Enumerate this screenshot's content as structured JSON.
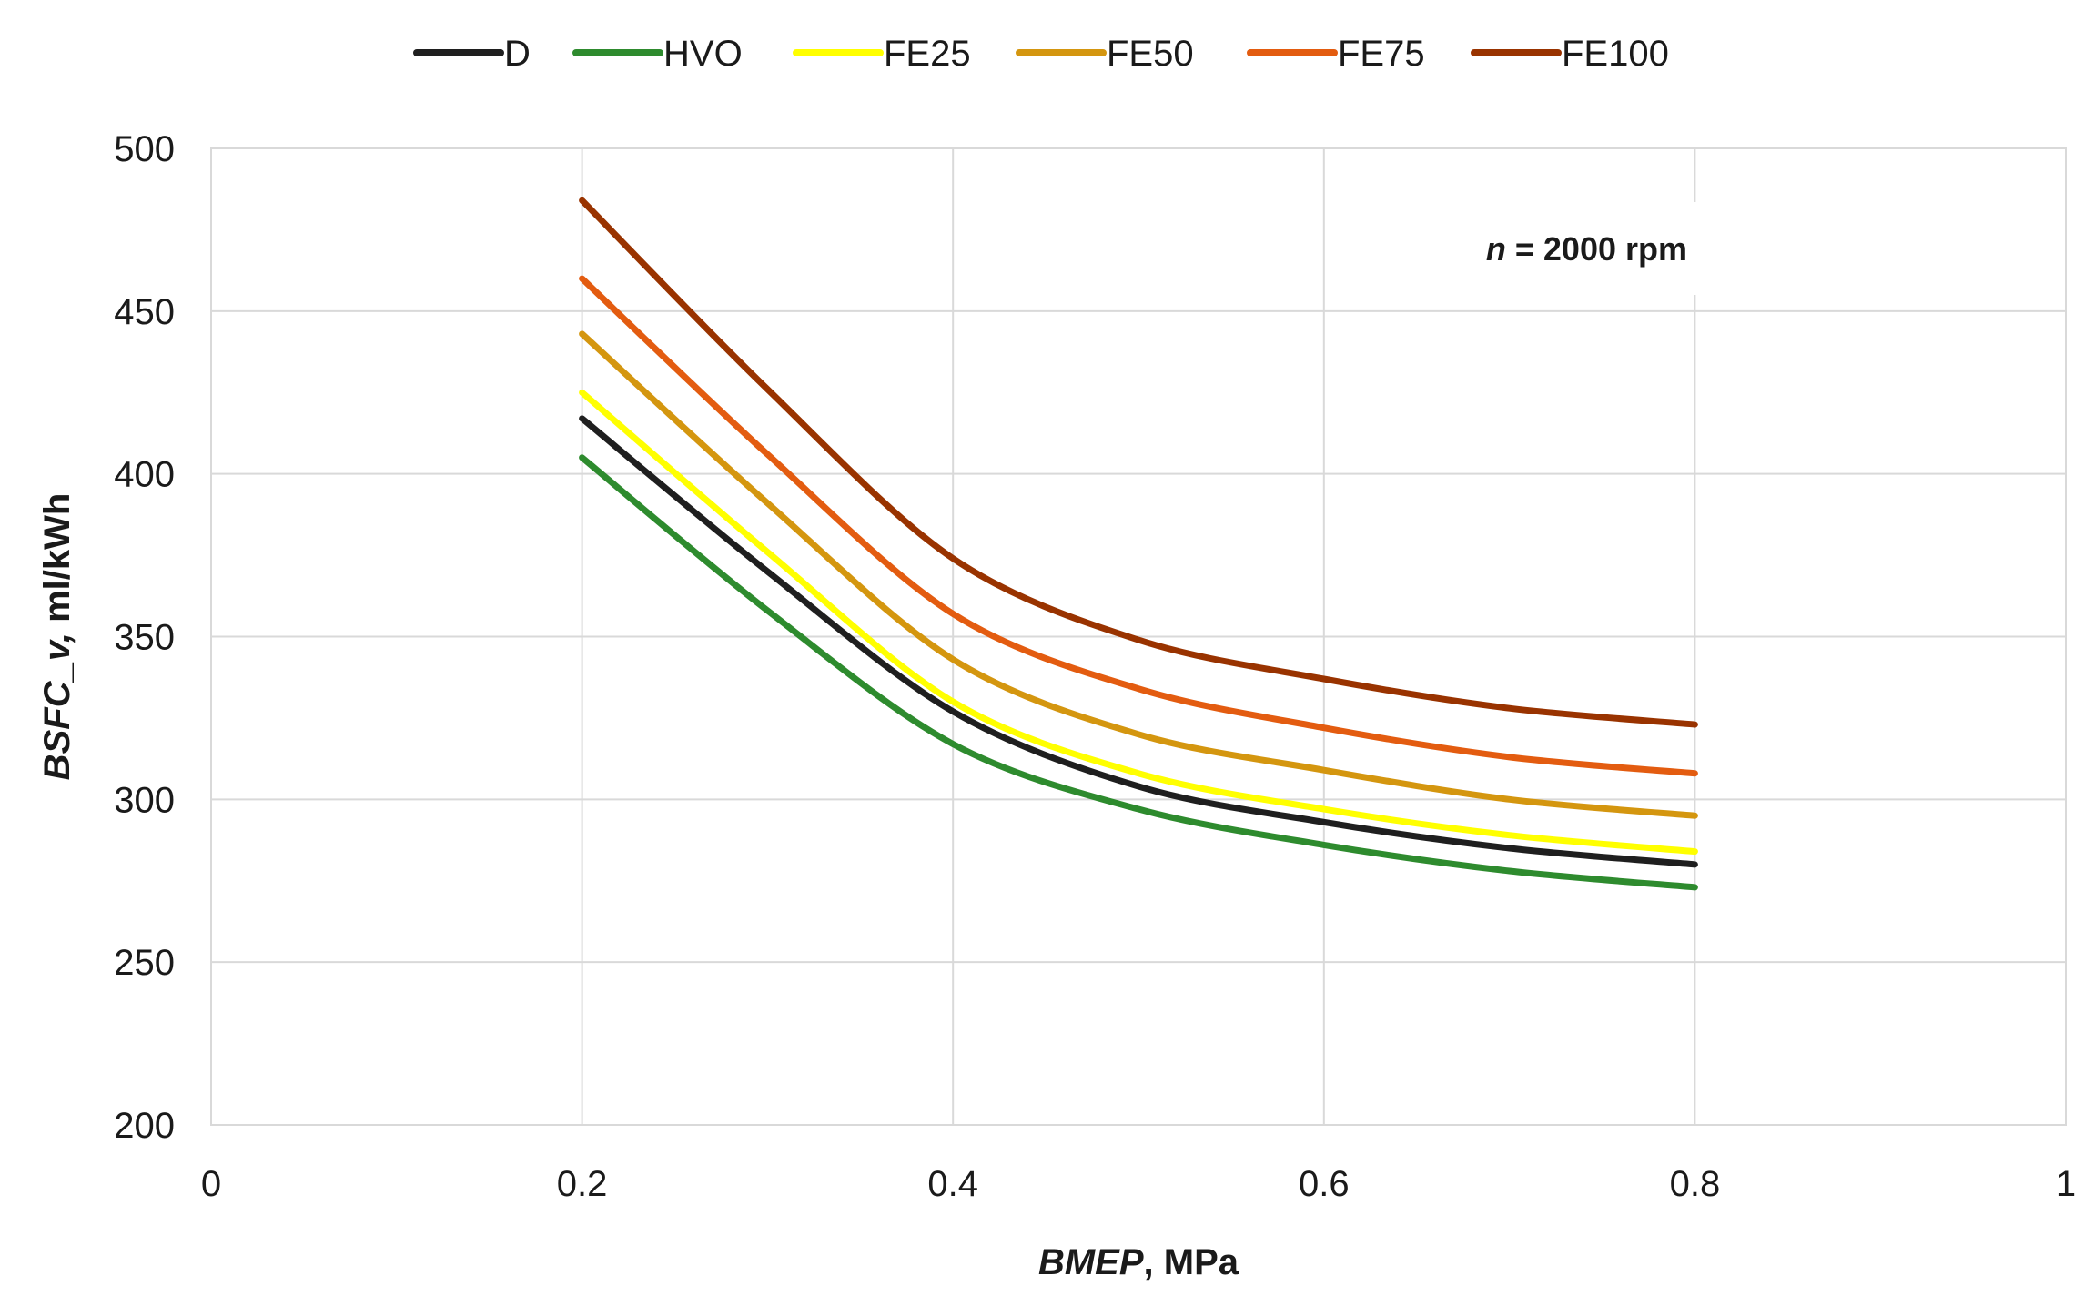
{
  "chart_data": {
    "type": "line",
    "title": "",
    "xlabel": {
      "italic": "BMEP",
      "rest": ", MPa"
    },
    "ylabel": {
      "italic": "BSFC_v,",
      "rest": " ml/kWh"
    },
    "xlim": [
      0,
      1
    ],
    "ylim": [
      200,
      500
    ],
    "x_ticks": [
      "0",
      "0.2",
      "0.4",
      "0.6",
      "0.8",
      "1"
    ],
    "y_ticks": [
      "200",
      "250",
      "300",
      "350",
      "400",
      "450",
      "500"
    ],
    "grid": true,
    "legend_position": "top",
    "annotation": {
      "var": "n",
      "text": " = 2000 rpm"
    },
    "x": [
      0.2,
      0.3,
      0.4,
      0.5,
      0.6,
      0.7,
      0.8
    ],
    "series": [
      {
        "name": "D",
        "color": "#1f1f1f",
        "values": [
          417,
          370,
          327,
          304,
          293,
          285,
          280
        ]
      },
      {
        "name": "HVO",
        "color": "#2e8b2e",
        "values": [
          405,
          358,
          317,
          297,
          286,
          278,
          273
        ]
      },
      {
        "name": "FE25",
        "color": "#ffff00",
        "values": [
          425,
          376,
          330,
          308,
          297,
          289,
          284
        ]
      },
      {
        "name": "FE50",
        "color": "#d4960f",
        "values": [
          443,
          391,
          343,
          320,
          309,
          300,
          295
        ]
      },
      {
        "name": "FE75",
        "color": "#e35c10",
        "values": [
          460,
          406,
          357,
          334,
          322,
          313,
          308
        ]
      },
      {
        "name": "FE100",
        "color": "#993300",
        "values": [
          484,
          426,
          374,
          349,
          337,
          328,
          323
        ]
      }
    ]
  }
}
